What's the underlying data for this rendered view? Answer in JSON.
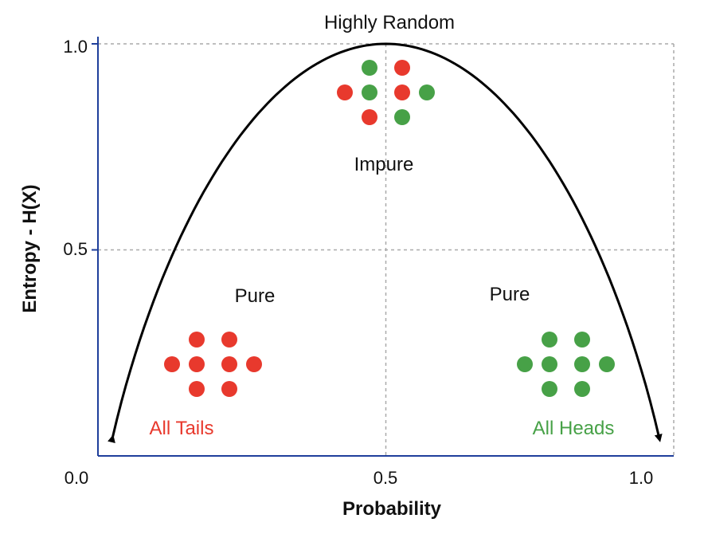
{
  "chart_data": {
    "type": "line",
    "title": "Highly Random",
    "xlabel": "Probability",
    "ylabel": "Entropy - H(X)",
    "xlim": [
      0,
      1
    ],
    "ylim": [
      0,
      1
    ],
    "x_ticks": [
      "0.0",
      "0.5",
      "1.0"
    ],
    "y_ticks": [
      "1.0",
      "0.5"
    ],
    "grid": "dashed at 0.5 and 1.0",
    "series": [
      {
        "curve": "binary entropy H(p) = -p log2 p - (1-p) log2 (1-p)",
        "color": "#000000",
        "x": [
          0.05,
          0.1,
          0.2,
          0.3,
          0.4,
          0.5,
          0.6,
          0.7,
          0.8,
          0.9,
          0.95
        ],
        "y": [
          0.29,
          0.47,
          0.72,
          0.88,
          0.97,
          1.0,
          0.97,
          0.88,
          0.72,
          0.47,
          0.29
        ]
      }
    ],
    "annotations": {
      "impure": "Impure",
      "pure_left": "Pure",
      "pure_right": "Pure",
      "all_tails": "All Tails",
      "all_heads": "All Heads"
    },
    "colors": {
      "tails": "#e8392d",
      "heads": "#47a147",
      "axis": "#1f3f9b",
      "grid": "#aaaaaa",
      "curve": "#000000"
    },
    "dot_groups": {
      "top": [
        "green",
        "red",
        "red",
        "green",
        "red",
        "green",
        "red",
        "green"
      ],
      "left": [
        "red",
        "red",
        "red",
        "red",
        "red",
        "red",
        "red",
        "red"
      ],
      "right": [
        "green",
        "green",
        "green",
        "green",
        "green",
        "green",
        "green",
        "green"
      ]
    }
  }
}
